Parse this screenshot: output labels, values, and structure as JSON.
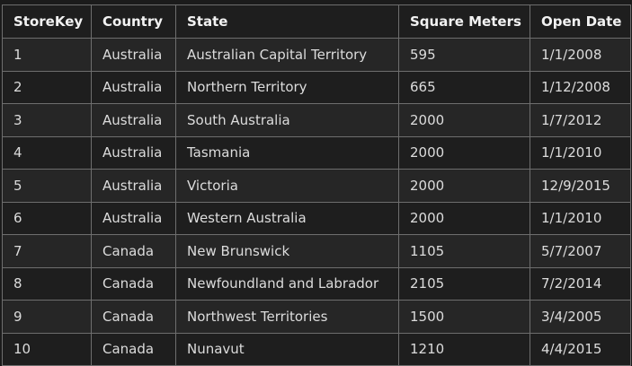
{
  "table": {
    "headers": [
      "StoreKey",
      "Country",
      "State",
      "Square Meters",
      "Open Date"
    ],
    "rows": [
      [
        "1",
        "Australia",
        "Australian Capital Territory",
        "595",
        "1/1/2008"
      ],
      [
        "2",
        "Australia",
        "Northern Territory",
        "665",
        "1/12/2008"
      ],
      [
        "3",
        "Australia",
        "South Australia",
        "2000",
        "1/7/2012"
      ],
      [
        "4",
        "Australia",
        "Tasmania",
        "2000",
        "1/1/2010"
      ],
      [
        "5",
        "Australia",
        "Victoria",
        "2000",
        "12/9/2015"
      ],
      [
        "6",
        "Australia",
        "Western Australia",
        "2000",
        "1/1/2010"
      ],
      [
        "7",
        "Canada",
        "New Brunswick",
        "1105",
        "5/7/2007"
      ],
      [
        "8",
        "Canada",
        "Newfoundland and Labrador",
        "2105",
        "7/2/2014"
      ],
      [
        "9",
        "Canada",
        "Northwest Territories",
        "1500",
        "3/4/2005"
      ],
      [
        "10",
        "Canada",
        "Nunavut",
        "1210",
        "4/4/2015"
      ]
    ]
  },
  "colors": {
    "background": "#1b1b1b",
    "border": "#6e6e6e",
    "row_odd": "#262626",
    "row_even": "#1e1e1e",
    "text": "#dcdcdc"
  }
}
